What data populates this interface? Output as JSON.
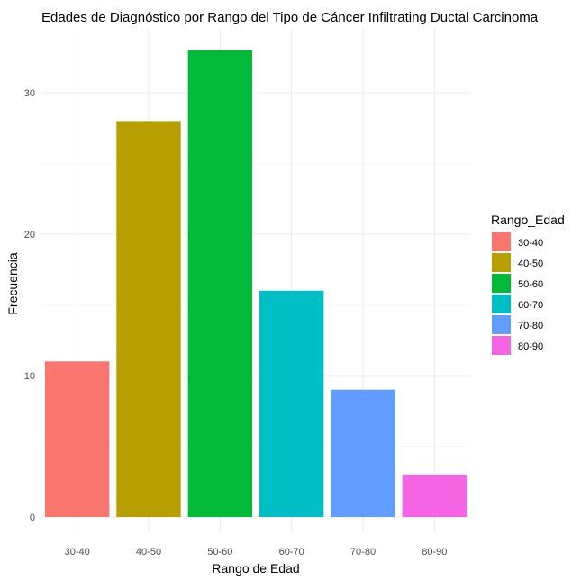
{
  "chart_data": {
    "type": "bar",
    "title": "Edades de Diagnóstico por Rango del Tipo de Cáncer Infiltrating Ductal Carcinoma",
    "xlabel": "Rango de Edad",
    "ylabel": "Frecuencia",
    "categories": [
      "30-40",
      "40-50",
      "50-60",
      "60-70",
      "70-80",
      "80-90"
    ],
    "values": [
      11,
      28,
      33,
      16,
      9,
      3
    ],
    "colors": [
      "#F8766D",
      "#B79F00",
      "#00BA38",
      "#00BFC4",
      "#619CFF",
      "#F564E3"
    ],
    "ylim": [
      0,
      35
    ],
    "yticks": [
      0,
      10,
      20,
      30
    ],
    "grid": true,
    "legend": {
      "title": "Rango_Edad",
      "placement": "right",
      "items": [
        "30-40",
        "40-50",
        "50-60",
        "60-70",
        "70-80",
        "80-90"
      ]
    }
  }
}
